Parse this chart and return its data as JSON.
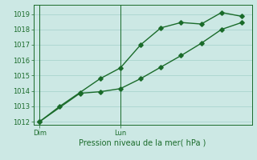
{
  "xlabel": "Pression niveau de la mer( hPa )",
  "ylim": [
    1011.8,
    1019.6
  ],
  "yticks": [
    1012,
    1013,
    1014,
    1015,
    1016,
    1017,
    1018,
    1019
  ],
  "bg_color": "#cce8e4",
  "grid_color": "#aad4ce",
  "line_color": "#1a6b2a",
  "day_labels": [
    {
      "label": "Dim",
      "x": 0.0
    },
    {
      "label": "Lun",
      "x": 4.0
    }
  ],
  "line1_x": [
    0,
    1,
    2,
    3,
    4,
    5,
    6,
    7,
    8,
    9,
    10
  ],
  "line1_y": [
    1012.0,
    1013.0,
    1013.9,
    1014.8,
    1015.5,
    1017.0,
    1018.1,
    1018.45,
    1018.35,
    1019.1,
    1018.85
  ],
  "line2_x": [
    0,
    2,
    3,
    4,
    5,
    6,
    7,
    8,
    9,
    10
  ],
  "line2_y": [
    1012.0,
    1013.85,
    1013.95,
    1014.15,
    1014.8,
    1015.55,
    1016.3,
    1017.1,
    1018.0,
    1018.45
  ],
  "vline_positions": [
    0.0,
    4.0
  ],
  "marker_size": 2.8,
  "line_width": 1.0,
  "tick_fontsize": 6,
  "xlabel_fontsize": 7
}
